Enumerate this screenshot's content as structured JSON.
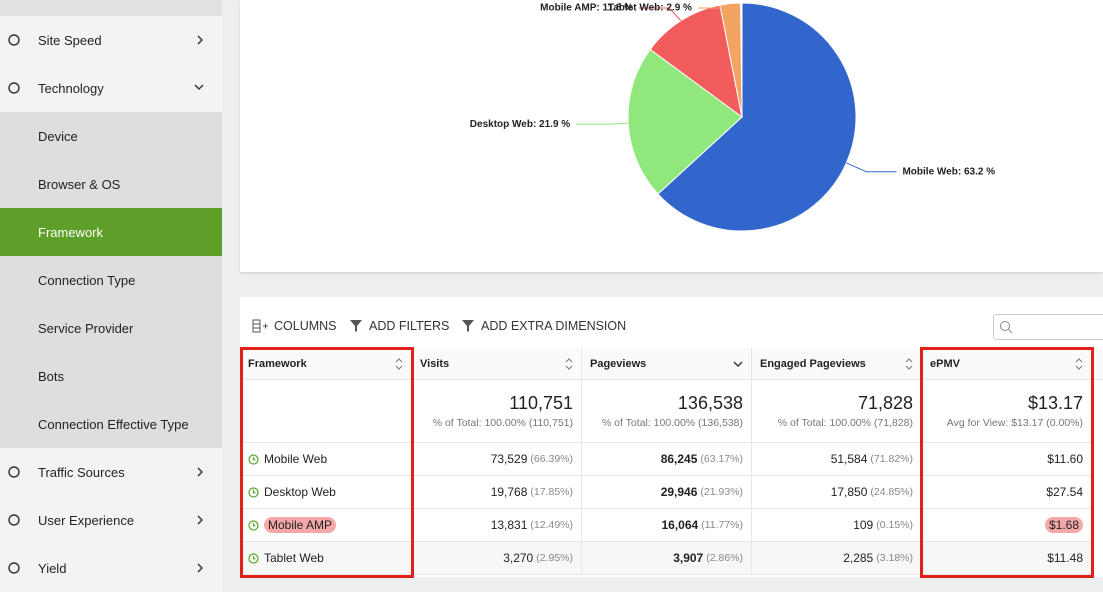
{
  "sidebar": {
    "items": [
      "Site Speed",
      "Technology",
      "Device",
      "Browser & OS",
      "Framework",
      "Connection Type",
      "Service Provider",
      "Bots",
      "Connection Effective Type",
      "Traffic Sources",
      "User Experience",
      "Yield"
    ]
  },
  "chart_data": {
    "type": "pie",
    "values": [
      63.2,
      21.9,
      11.8,
      2.9
    ],
    "value_labels": [
      "Mobile Web: 63.2 %",
      "Desktop Web: 21.9 %",
      "Mobile AMP: 11.8 %",
      "Tablet Web: 2.9 %"
    ],
    "colors": [
      "#3366cc",
      "#90e87c",
      "#f25c5c",
      "#f4a462"
    ]
  },
  "toolbar": {
    "columns": "COLUMNS",
    "filters": "ADD FILTERS",
    "dimension": "ADD EXTRA DIMENSION"
  },
  "table": {
    "columns": [
      "Framework",
      "Visits",
      "Pageviews",
      "Engaged Pageviews",
      "ePMV"
    ],
    "totals": [
      [
        "110,751",
        "% of Total: 100.00% (110,751)"
      ],
      [
        "136,538",
        "% of Total: 100.00% (136,538)"
      ],
      [
        "71,828",
        "% of Total: 100.00% (71,828)"
      ],
      [
        "$13.17",
        "Avg for View: $13.17 (0.00%)"
      ]
    ],
    "rows": [
      [
        "Mobile Web",
        [
          "73,529",
          "(66.39%)"
        ],
        [
          "86,245",
          "(63.17%)"
        ],
        [
          "51,584",
          "(71.82%)"
        ],
        "$11.60"
      ],
      [
        "Desktop Web",
        [
          "19,768",
          "(17.85%)"
        ],
        [
          "29,946",
          "(21.93%)"
        ],
        [
          "17,850",
          "(24.85%)"
        ],
        "$27.54"
      ],
      [
        "Mobile AMP",
        [
          "13,831",
          "(12.49%)"
        ],
        [
          "16,064",
          "(11.77%)"
        ],
        [
          "109",
          "(0.15%)"
        ],
        "$1.68"
      ],
      [
        "Tablet Web",
        [
          "3,270",
          "(2.95%)"
        ],
        [
          "3,907",
          "(2.86%)"
        ],
        [
          "2,285",
          "(3.18%)"
        ],
        "$11.48"
      ]
    ]
  }
}
